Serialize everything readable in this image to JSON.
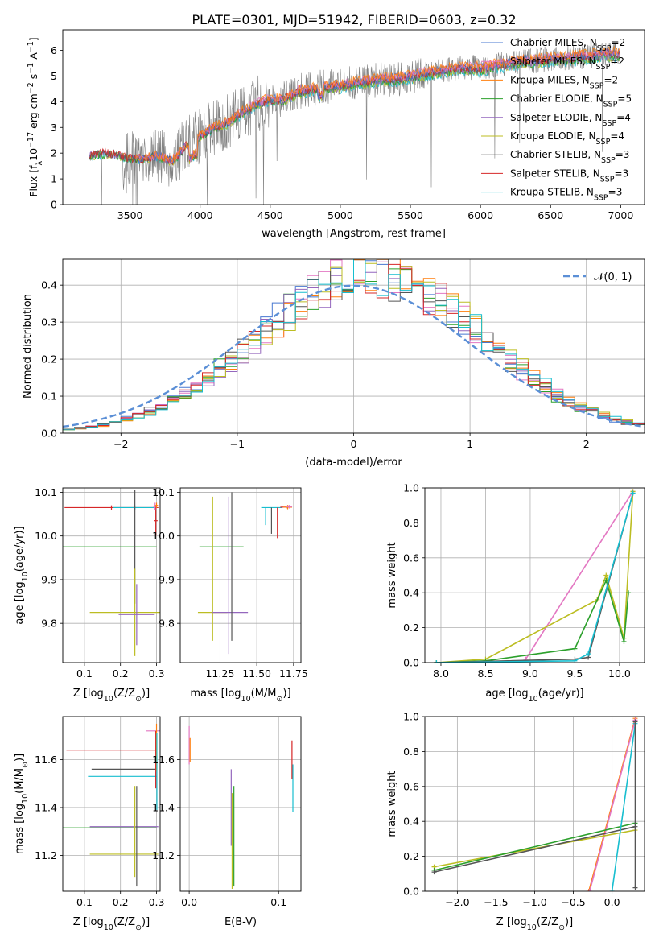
{
  "figure": {
    "title": "PLATE=0301, MJD=51942, FIBERID=0603, z=0.32"
  },
  "colors": {
    "chabrier_miles": "#4878d0",
    "salpeter_miles": "#e377c2",
    "kroupa_miles": "#ff7f0e",
    "chabrier_elodie": "#2ca02c",
    "salpeter_elodie": "#9467bd",
    "kroupa_elodie": "#bcbd22",
    "chabrier_stelib": "#555555",
    "salpeter_stelib": "#d62728",
    "kroupa_stelib": "#17becf",
    "normal_curve": "#5b8fd6",
    "spectrum": "#808080"
  },
  "chart_data": [
    {
      "id": "spectrum",
      "type": "line",
      "xlabel": "wavelength [Angstrom, rest frame]",
      "ylabel": "Flux [f",
      "ylabel_sub": "λ",
      "ylabel_mid": "10",
      "ylabel_sup": "−17",
      "ylabel_tail": " erg cm",
      "ylabel_sup2": "−2",
      "ylabel_tail2": " s",
      "ylabel_sup3": "−1",
      "ylabel_tail3": " A",
      "ylabel_sup4": "−1",
      "ylabel_end": "]",
      "xlim": [
        3020,
        7170
      ],
      "ylim": [
        0,
        6.8
      ],
      "xticks": [
        "3500",
        "4000",
        "4500",
        "5000",
        "5500",
        "6000",
        "6500",
        "7000"
      ],
      "xtick_values": [
        3500,
        4000,
        4500,
        5000,
        5500,
        6000,
        6500,
        7000
      ],
      "yticks": [
        "0",
        "1",
        "2",
        "3",
        "4",
        "5",
        "6"
      ],
      "ytick_values": [
        0,
        1,
        2,
        3,
        4,
        5,
        6
      ],
      "legend_position": "top-right",
      "legend": [
        {
          "name": "Chabrier MILES, N",
          "sub": "SSP",
          "eq": "=2",
          "color_key": "chabrier_miles"
        },
        {
          "name": "Salpeter MILES, N",
          "sub": "SSP",
          "eq": "=2",
          "color_key": "salpeter_miles"
        },
        {
          "name": "Kroupa MILES, N",
          "sub": "SSP",
          "eq": "=2",
          "color_key": "kroupa_miles"
        },
        {
          "name": "Chabrier ELODIE, N",
          "sub": "SSP",
          "eq": "=5",
          "color_key": "chabrier_elodie"
        },
        {
          "name": "Salpeter ELODIE, N",
          "sub": "SSP",
          "eq": "=4",
          "color_key": "salpeter_elodie"
        },
        {
          "name": "Kroupa ELODIE, N",
          "sub": "SSP",
          "eq": "=4",
          "color_key": "kroupa_elodie"
        },
        {
          "name": "Chabrier STELIB, N",
          "sub": "SSP",
          "eq": "=3",
          "color_key": "chabrier_stelib"
        },
        {
          "name": "Salpeter STELIB, N",
          "sub": "SSP",
          "eq": "=3",
          "color_key": "salpeter_stelib"
        },
        {
          "name": "Kroupa STELIB, N",
          "sub": "SSP",
          "eq": "=3",
          "color_key": "kroupa_stelib"
        }
      ],
      "continuum": {
        "x": [
          3210,
          3300,
          3400,
          3500,
          3600,
          3700,
          3800,
          3900,
          4000,
          4100,
          4200,
          4300,
          4400,
          4500,
          4600,
          4700,
          4800,
          4900,
          5000,
          5100,
          5200,
          5300,
          5400,
          5500,
          5600,
          5700,
          5800,
          5900,
          6000,
          6100,
          6200,
          6300,
          6400,
          6500,
          6600,
          6700,
          6800,
          6900,
          7000
        ],
        "y": [
          1.9,
          2.0,
          1.95,
          1.8,
          1.8,
          1.9,
          1.7,
          2.3,
          2.7,
          3.0,
          3.2,
          3.6,
          3.9,
          4.1,
          4.1,
          4.4,
          4.5,
          4.6,
          4.6,
          4.75,
          4.8,
          4.9,
          4.9,
          5.0,
          5.1,
          5.2,
          5.3,
          5.35,
          5.3,
          5.4,
          5.5,
          5.6,
          5.6,
          5.7,
          5.7,
          5.75,
          5.8,
          5.85,
          5.9
        ]
      }
    },
    {
      "id": "residuals",
      "type": "step",
      "xlabel": "(data-model)/error",
      "ylabel": "Normed distribution",
      "xlim": [
        -2.5,
        2.5
      ],
      "ylim": [
        0,
        0.47
      ],
      "grid": true,
      "xticks": [
        "−2",
        "−1",
        "0",
        "1",
        "2"
      ],
      "xtick_values": [
        -2,
        -1,
        0,
        1,
        2
      ],
      "yticks": [
        "0.0",
        "0.1",
        "0.2",
        "0.3",
        "0.4"
      ],
      "ytick_values": [
        0,
        0.1,
        0.2,
        0.3,
        0.4
      ],
      "legend_position": "top-right",
      "legend_label": "𝒩(0, 1)"
    },
    {
      "id": "age_vs_Z",
      "type": "errorbar",
      "xlabel": "Z [log",
      "xlabel_sub": "10",
      "xlabel_mid": "(Z/Z",
      "xlabel_sub2": "⊙",
      "xlabel_end": ")]",
      "ylabel": "age  [log",
      "ylabel_sub": "10",
      "ylabel_end": "(age/yr)]",
      "xlim": [
        0.04,
        0.31
      ],
      "ylim": [
        9.71,
        10.11
      ],
      "grid": true,
      "xticks": [
        "0.1",
        "0.2",
        "0.3"
      ],
      "xtick_values": [
        0.1,
        0.2,
        0.3
      ],
      "yticks": [
        "9.8",
        "9.9",
        "10.0",
        "10.1"
      ],
      "ytick_values": [
        9.8,
        9.9,
        10.0,
        10.1
      ],
      "points": [
        {
          "x": 0.175,
          "y": 10.065,
          "xerr": 0.13,
          "yerr": 0.005,
          "color_key": "salpeter_stelib"
        },
        {
          "x": 0.24,
          "y": 10.065,
          "xerr": 0.06,
          "yerr": 0.005,
          "color_key": "kroupa_stelib"
        },
        {
          "x": 0.17,
          "y": 9.975,
          "xerr": 0.13,
          "yerr": 0.0,
          "color_key": "chabrier_elodie"
        },
        {
          "x": 0.24,
          "y": 9.975,
          "xerr": 0.0,
          "yerr": 0.13,
          "color_key": "chabrier_stelib"
        },
        {
          "x": 0.24,
          "y": 9.825,
          "xerr": 0.125,
          "yerr": 0.1,
          "color_key": "kroupa_elodie"
        },
        {
          "x": 0.245,
          "y": 9.82,
          "xerr": 0.05,
          "yerr": 0.07,
          "color_key": "salpeter_elodie"
        },
        {
          "x": 0.298,
          "y": 10.035,
          "xerr": 0.005,
          "yerr": 0.035,
          "color_key": "salpeter_stelib"
        },
        {
          "x": 0.296,
          "y": 10.068,
          "xerr": 0.005,
          "yerr": 0.008,
          "color_key": "salpeter_miles"
        },
        {
          "x": 0.3,
          "y": 10.07,
          "xerr": 0.004,
          "yerr": 0.006,
          "color_key": "kroupa_miles"
        }
      ]
    },
    {
      "id": "age_vs_mass",
      "type": "errorbar",
      "xlabel": "mass [log",
      "xlabel_sub": "10",
      "xlabel_mid": "(M/M",
      "xlabel_sub2": "⊙",
      "xlabel_end": ")]",
      "xlim": [
        10.98,
        11.8
      ],
      "ylim": [
        9.71,
        10.11
      ],
      "grid": true,
      "xticks": [
        "11.25",
        "11.50",
        "11.75"
      ],
      "xtick_values": [
        11.25,
        11.5,
        11.75
      ],
      "yticks": [
        "9.8",
        "9.9",
        "10.0",
        "10.1"
      ],
      "ytick_values": [
        9.8,
        9.9,
        10.0,
        10.1
      ],
      "points": [
        {
          "x": 11.26,
          "y": 9.975,
          "xerr": 0.15,
          "yerr": 0.0,
          "color_key": "chabrier_elodie"
        },
        {
          "x": 11.2,
          "y": 9.825,
          "xerr": 0.1,
          "yerr": 0.0,
          "color_key": "kroupa_elodie"
        },
        {
          "x": 11.2,
          "y": 9.925,
          "xerr": 0.0,
          "yerr": 0.165,
          "color_key": "kroupa_elodie"
        },
        {
          "x": 11.32,
          "y": 9.825,
          "xerr": 0.12,
          "yerr": 0.0,
          "color_key": "salpeter_elodie"
        },
        {
          "x": 11.31,
          "y": 9.91,
          "xerr": 0.0,
          "yerr": 0.18,
          "color_key": "salpeter_elodie"
        },
        {
          "x": 11.33,
          "y": 9.93,
          "xerr": 0.0,
          "yerr": 0.17,
          "color_key": "chabrier_stelib"
        },
        {
          "x": 11.6,
          "y": 10.065,
          "xerr": 0.07,
          "yerr": 0.0,
          "color_key": "kroupa_stelib"
        },
        {
          "x": 11.56,
          "y": 10.045,
          "xerr": 0.0,
          "yerr": 0.02,
          "color_key": "kroupa_stelib"
        },
        {
          "x": 11.6,
          "y": 10.035,
          "xerr": 0.0,
          "yerr": 0.03,
          "color_key": "chabrier_stelib"
        },
        {
          "x": 11.64,
          "y": 10.03,
          "xerr": 0.0,
          "yerr": 0.035,
          "color_key": "salpeter_stelib"
        },
        {
          "x": 11.7,
          "y": 10.066,
          "xerr": 0.04,
          "yerr": 0.003,
          "color_key": "salpeter_stelib"
        },
        {
          "x": 11.71,
          "y": 10.066,
          "xerr": 0.03,
          "yerr": 0.005,
          "color_key": "kroupa_miles"
        },
        {
          "x": 11.72,
          "y": 10.067,
          "xerr": 0.02,
          "yerr": 0.004,
          "color_key": "salpeter_miles"
        }
      ]
    },
    {
      "id": "mass_weight_vs_age",
      "type": "line",
      "xlabel": "age  [log",
      "xlabel_sub": "10",
      "xlabel_end": "(age/yr)]",
      "ylabel": "mass weight",
      "xlim": [
        7.82,
        10.28
      ],
      "ylim": [
        0,
        1
      ],
      "grid": true,
      "xticks": [
        "8.0",
        "8.5",
        "9.0",
        "9.5",
        "10.0"
      ],
      "xtick_values": [
        8.0,
        8.5,
        9.0,
        9.5,
        10.0
      ],
      "yticks": [
        "0.0",
        "0.2",
        "0.4",
        "0.6",
        "0.8",
        "1.0"
      ],
      "ytick_values": [
        0,
        0.2,
        0.4,
        0.6,
        0.8,
        1.0
      ],
      "series": [
        {
          "color_key": "salpeter_miles",
          "x": [
            8.95,
            10.15
          ],
          "y": [
            0.02,
            0.98
          ]
        },
        {
          "color_key": "kroupa_elodie",
          "x": [
            7.95,
            8.5,
            9.75,
            9.85,
            10.05,
            10.15
          ],
          "y": [
            0.0,
            0.02,
            0.36,
            0.5,
            0.14,
            0.98
          ]
        },
        {
          "color_key": "chabrier_elodie",
          "x": [
            7.95,
            8.5,
            9.5,
            9.85,
            10.05,
            10.1
          ],
          "y": [
            0.0,
            0.01,
            0.08,
            0.47,
            0.12,
            0.4
          ]
        },
        {
          "color_key": "chabrier_stelib",
          "x": [
            7.95,
            9.5,
            9.65,
            10.15
          ],
          "y": [
            0.0,
            0.02,
            0.03,
            0.97
          ]
        },
        {
          "color_key": "kroupa_stelib",
          "x": [
            7.95,
            9.5,
            9.65,
            10.15
          ],
          "y": [
            0.0,
            0.01,
            0.05,
            0.97
          ]
        }
      ]
    },
    {
      "id": "mass_vs_Z",
      "type": "errorbar",
      "xlabel": "Z [log",
      "xlabel_sub": "10",
      "xlabel_mid": "(Z/Z",
      "xlabel_sub2": "⊙",
      "xlabel_end": ")]",
      "ylabel": "mass [log",
      "ylabel_sub": "10",
      "ylabel_mid": "(M/M",
      "ylabel_sub2": "⊙",
      "ylabel_end": ")]",
      "xlim": [
        0.04,
        0.31
      ],
      "ylim": [
        11.05,
        11.78
      ],
      "grid": true,
      "xticks": [
        "0.1",
        "0.2",
        "0.3"
      ],
      "xtick_values": [
        0.1,
        0.2,
        0.3
      ],
      "yticks": [
        "11.2",
        "11.4",
        "11.6"
      ],
      "ytick_values": [
        11.2,
        11.4,
        11.6
      ],
      "points": [
        {
          "x": 0.175,
          "y": 11.64,
          "xerr": 0.125,
          "yerr": 0.0,
          "color_key": "salpeter_stelib"
        },
        {
          "x": 0.21,
          "y": 11.56,
          "xerr": 0.09,
          "yerr": 0.0,
          "color_key": "chabrier_stelib"
        },
        {
          "x": 0.205,
          "y": 11.53,
          "xerr": 0.095,
          "yerr": 0.0,
          "color_key": "kroupa_stelib"
        },
        {
          "x": 0.17,
          "y": 11.315,
          "xerr": 0.13,
          "yerr": 0.0,
          "color_key": "chabrier_elodie"
        },
        {
          "x": 0.21,
          "y": 11.32,
          "xerr": 0.095,
          "yerr": 0.0,
          "color_key": "salpeter_elodie"
        },
        {
          "x": 0.21,
          "y": 11.205,
          "xerr": 0.095,
          "yerr": 0.0,
          "color_key": "kroupa_elodie"
        },
        {
          "x": 0.24,
          "y": 11.3,
          "xerr": 0.0,
          "yerr": 0.19,
          "color_key": "kroupa_elodie"
        },
        {
          "x": 0.245,
          "y": 11.28,
          "xerr": 0.0,
          "yerr": 0.21,
          "color_key": "chabrier_stelib"
        },
        {
          "x": 0.29,
          "y": 11.72,
          "xerr": 0.02,
          "yerr": 0.0,
          "color_key": "salpeter_miles"
        },
        {
          "x": 0.298,
          "y": 11.6,
          "xerr": 0.0,
          "yerr": 0.12,
          "color_key": "salpeter_stelib"
        },
        {
          "x": 0.3,
          "y": 11.65,
          "xerr": 0.0,
          "yerr": 0.1,
          "color_key": "kroupa_miles"
        },
        {
          "x": 0.301,
          "y": 11.55,
          "xerr": 0.0,
          "yerr": 0.16,
          "color_key": "kroupa_stelib"
        }
      ]
    },
    {
      "id": "mass_vs_EBV",
      "type": "errorbar",
      "xlabel": "E(B-V)",
      "xlim": [
        -0.01,
        0.125
      ],
      "ylim": [
        11.05,
        11.78
      ],
      "grid": true,
      "xticks": [
        "0.0",
        "0.1"
      ],
      "xtick_values": [
        0.0,
        0.1
      ],
      "yticks": [
        "11.2",
        "11.4",
        "11.6"
      ],
      "ytick_values": [
        11.2,
        11.4,
        11.6
      ],
      "points": [
        {
          "x": 0.0,
          "y": 11.66,
          "xerr": 0.0,
          "yerr": 0.08,
          "color_key": "salpeter_miles"
        },
        {
          "x": 0.001,
          "y": 11.64,
          "xerr": 0.0,
          "yerr": 0.05,
          "color_key": "kroupa_miles"
        },
        {
          "x": 0.047,
          "y": 11.4,
          "xerr": 0.0,
          "yerr": 0.16,
          "color_key": "salpeter_elodie"
        },
        {
          "x": 0.048,
          "y": 11.26,
          "xerr": 0.0,
          "yerr": 0.2,
          "color_key": "kroupa_elodie"
        },
        {
          "x": 0.05,
          "y": 11.28,
          "xerr": 0.0,
          "yerr": 0.21,
          "color_key": "chabrier_elodie"
        },
        {
          "x": 0.115,
          "y": 11.6,
          "xerr": 0.0,
          "yerr": 0.08,
          "color_key": "salpeter_stelib"
        },
        {
          "x": 0.116,
          "y": 11.48,
          "xerr": 0.0,
          "yerr": 0.1,
          "color_key": "kroupa_stelib"
        }
      ]
    },
    {
      "id": "mass_weight_vs_Z",
      "type": "line",
      "xlabel": "Z [log",
      "xlabel_sub": "10",
      "xlabel_mid": "(Z/Z",
      "xlabel_sub2": "⊙",
      "xlabel_end": ")]",
      "ylabel": "mass weight",
      "xlim": [
        -2.42,
        0.42
      ],
      "ylim": [
        0,
        1
      ],
      "grid": true,
      "xticks": [
        "−2.0",
        "−1.5",
        "−1.0",
        "−0.5",
        "0.0"
      ],
      "xtick_values": [
        -2.0,
        -1.5,
        -1.0,
        -0.5,
        0.0
      ],
      "yticks": [
        "0.0",
        "0.2",
        "0.4",
        "0.6",
        "0.8",
        "1.0"
      ],
      "ytick_values": [
        0,
        0.2,
        0.4,
        0.6,
        0.8,
        1.0
      ],
      "series": [
        {
          "color_key": "kroupa_miles",
          "x": [
            -0.3,
            0.3
          ],
          "y": [
            0.0,
            0.99
          ]
        },
        {
          "color_key": "salpeter_miles",
          "x": [
            -0.29,
            0.3
          ],
          "y": [
            0.0,
            0.98
          ]
        },
        {
          "color_key": "kroupa_elodie",
          "x": [
            -2.3,
            0.3
          ],
          "y": [
            0.14,
            0.35
          ]
        },
        {
          "color_key": "chabrier_elodie",
          "x": [
            -2.3,
            0.3
          ],
          "y": [
            0.12,
            0.39
          ]
        },
        {
          "color_key": "chabrier_stelib",
          "x": [
            -2.3,
            0.3
          ],
          "y": [
            0.11,
            0.37
          ]
        },
        {
          "color_key": "kroupa_stelib",
          "x": [
            0.0,
            0.3
          ],
          "y": [
            0.0,
            0.96
          ]
        },
        {
          "color_key": "chabrier_stelib",
          "x": [
            0.3,
            0.3
          ],
          "y": [
            0.02,
            0.97
          ]
        }
      ]
    }
  ]
}
